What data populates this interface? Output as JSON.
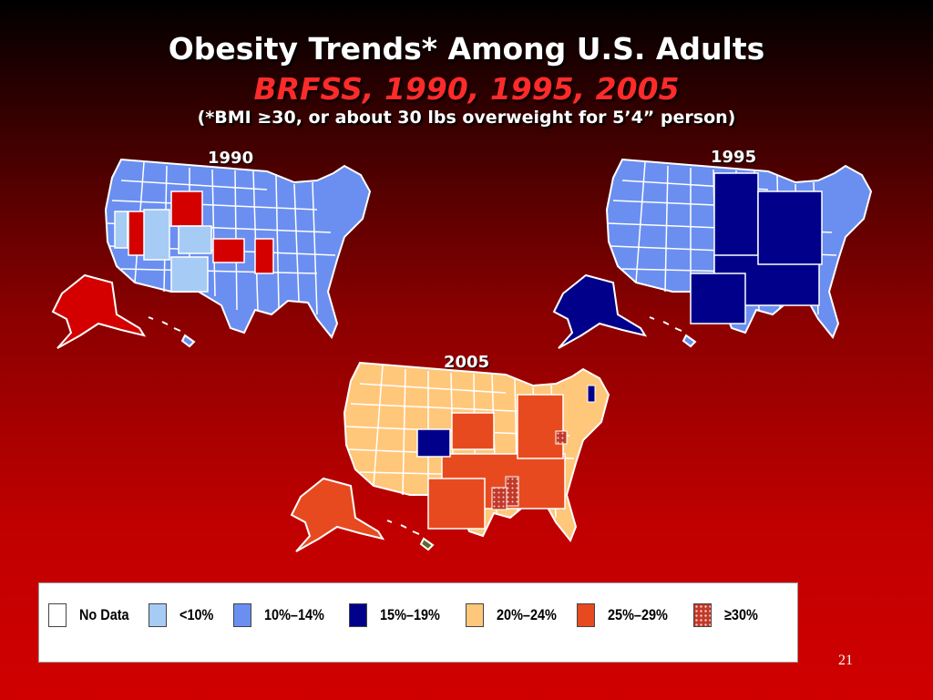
{
  "slide": {
    "title": "Obesity Trends* Among U.S. Adults",
    "subtitle": "BRFSS, 1990, 1995, 2005",
    "note": "(*BMI ≥30, or about 30 lbs overweight for 5’4” person)",
    "page_number": "21"
  },
  "colors": {
    "no_data": "#ffffff",
    "lt10": "#a6ccf5",
    "r10_14": "#6a8ff0",
    "r15_19": "#00008b",
    "r20_24": "#ffc77a",
    "r25_29": "#e84a1f",
    "ge30": "#c0392b"
  },
  "maps": [
    {
      "year": "1990",
      "mainland_fill": "#6a8ff0",
      "light_fill": "#a6ccf5",
      "highlight_fill": "#d40000",
      "alaska_fill": "#d40000",
      "hawaii_fill": "#6a8ff0"
    },
    {
      "year": "1995",
      "mainland_fill": "#6a8ff0",
      "light_fill": "#6a8ff0",
      "highlight_fill": "#00008b",
      "alaska_fill": "#00008b",
      "hawaii_fill": "#6a8ff0"
    },
    {
      "year": "2005",
      "mainland_fill": "#ffc77a",
      "light_fill": "#ffc77a",
      "highlight_fill": "#e84a1f",
      "alaska_fill": "#e84a1f",
      "hawaii_fill": "#5a6b2a"
    }
  ],
  "legend": [
    {
      "label": "No Data",
      "color": "#ffffff",
      "pattern": "none"
    },
    {
      "label": "<10%",
      "color": "#a6ccf5",
      "pattern": "none"
    },
    {
      "label": "10%–14%",
      "color": "#6a8ff0",
      "pattern": "none"
    },
    {
      "label": "15%–19%",
      "color": "#00008b",
      "pattern": "none"
    },
    {
      "label": "20%–24%",
      "color": "#ffc77a",
      "pattern": "none"
    },
    {
      "label": "25%–29%",
      "color": "#e84a1f",
      "pattern": "none"
    },
    {
      "label": "≥30%",
      "color": "#c0392b",
      "pattern": "dots"
    }
  ]
}
